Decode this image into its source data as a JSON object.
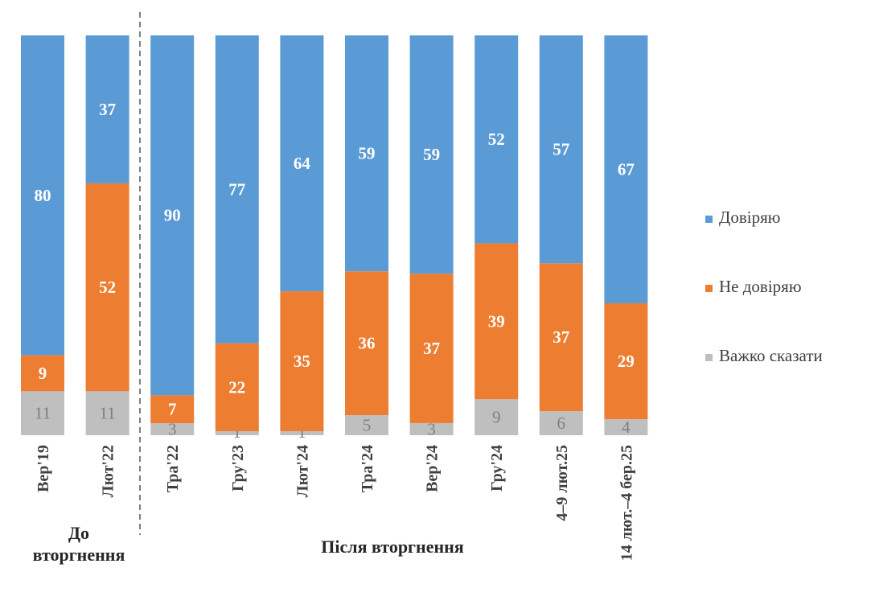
{
  "chart_data": {
    "type": "bar",
    "stacked": true,
    "categories": [
      "Вер'19",
      "Лют'22",
      "Тра'22",
      "Гру'23",
      "Лют'24",
      "Тра'24",
      "Вер'24",
      "Гру'24",
      "4–9 лют.25",
      "14 лют.–4 бер.25"
    ],
    "series": [
      {
        "name": "Довіряю",
        "color": "#5B9BD5",
        "values": [
          80,
          37,
          90,
          77,
          64,
          59,
          59,
          52,
          57,
          67
        ]
      },
      {
        "name": "Не довіряю",
        "color": "#ED7D31",
        "values": [
          9,
          52,
          7,
          22,
          35,
          36,
          37,
          39,
          37,
          29
        ]
      },
      {
        "name": "Важко сказати",
        "color": "#BFBFBF",
        "values": [
          11,
          11,
          3,
          1,
          1,
          5,
          3,
          9,
          6,
          4
        ]
      }
    ],
    "ylim": [
      0,
      100
    ],
    "grid": false,
    "legend_placement": "right",
    "groups": [
      {
        "label": "До вторгнення",
        "categories": [
          "Вер'19",
          "Лют'22"
        ]
      },
      {
        "label": "Після вторгнення",
        "categories": [
          "Тра'22",
          "Гру'23",
          "Лют'24",
          "Тра'24",
          "Вер'24",
          "Гру'24",
          "4–9 лют.25",
          "14 лют.–4 бер.25"
        ]
      }
    ]
  }
}
